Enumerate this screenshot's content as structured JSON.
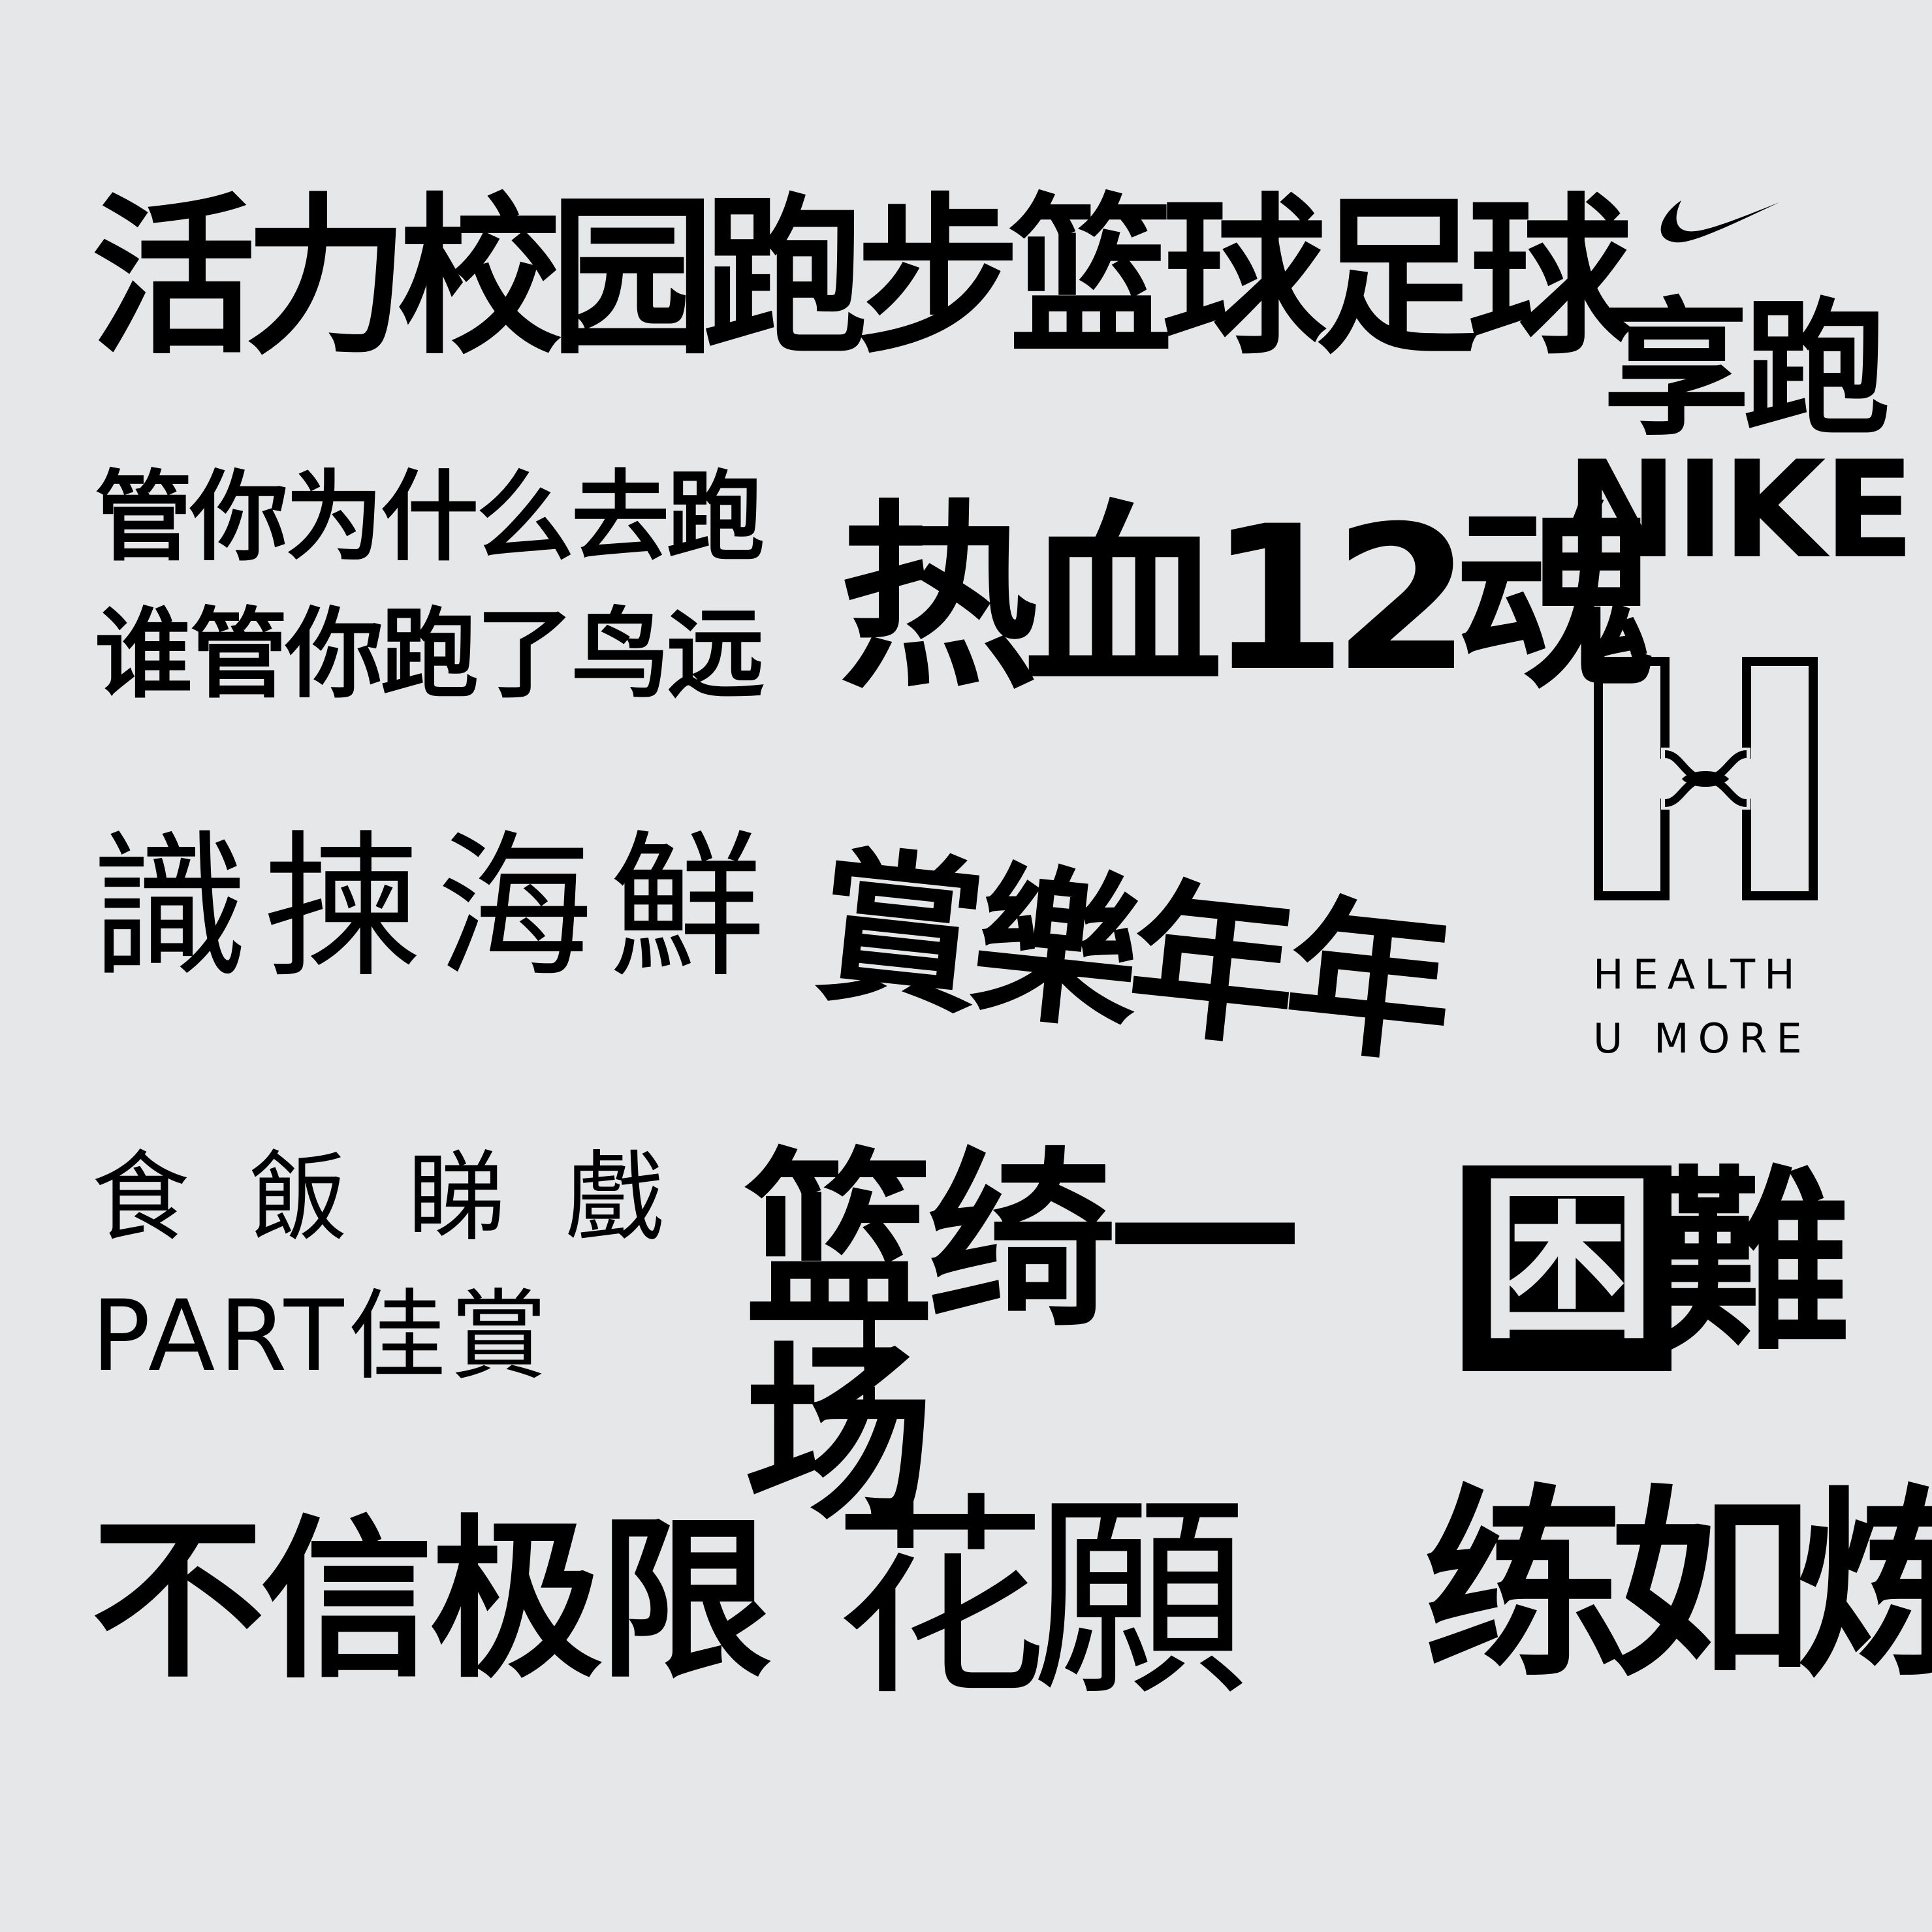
{
  "lines": {
    "t1": "活力校园跑步篮球足球",
    "t2a": "管你为什么去跑",
    "t2b": "谁管你跑了鸟远",
    "t3": "热血12魂",
    "t4": "識揀海鮮",
    "t5": "賞樂年年",
    "t6a": "食飯睇戲",
    "t6b": "PART佳賞",
    "t7": "篮绮一场",
    "t8": "!",
    "t9": "不信极限",
    "t10": "花願",
    "t11": "练如炼"
  },
  "nike": {
    "logo_icon": "swoosh-icon",
    "cn": "享跑",
    "en": "NIKE"
  },
  "health": {
    "logo_icon": "h-logo-icon",
    "line1": "HEALTH",
    "line2": "U MORE"
  },
  "kunnan": {
    "boxed_char": "困",
    "char": "難"
  },
  "colors": {
    "background": "#e6e7e9",
    "ink": "#000000"
  }
}
